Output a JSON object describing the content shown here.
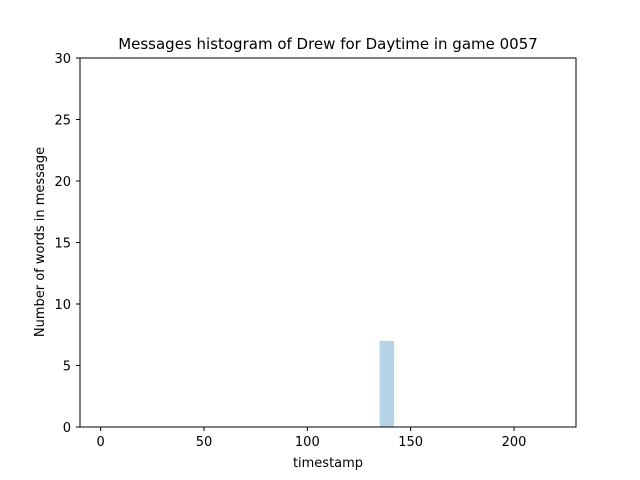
{
  "chart_data": {
    "type": "bar",
    "title": "Messages histogram of Drew for Daytime in game 0057",
    "xlabel": "timestamp",
    "ylabel": "Number of words in message",
    "xlim": [
      -10,
      230
    ],
    "ylim": [
      0,
      30
    ],
    "x_ticks": [
      0,
      50,
      100,
      150,
      200
    ],
    "y_ticks": [
      0,
      5,
      10,
      15,
      20,
      25,
      30
    ],
    "bar_width": 7,
    "bar_color": "#b7d3e6",
    "grid": false,
    "bars": [
      {
        "x": 135,
        "value": 7
      }
    ]
  }
}
